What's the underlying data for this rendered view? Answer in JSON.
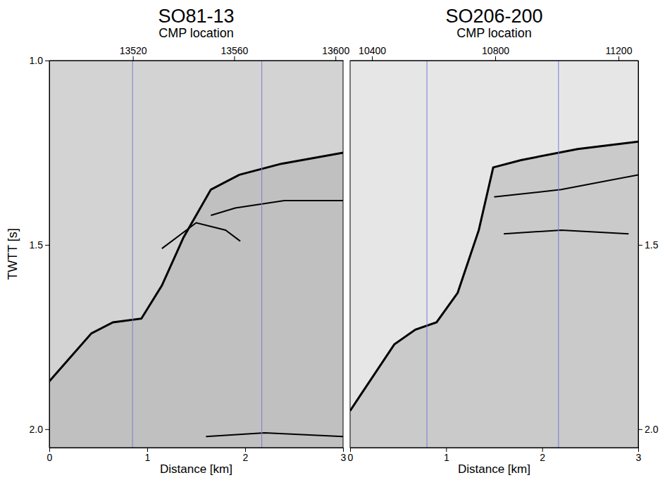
{
  "chart_data": [
    {
      "type": "line",
      "title": "SO81-13",
      "x2_label": "CMP location",
      "x_label": "Distance [km]",
      "y_label": "TWTT [s]",
      "color": "#d3d3d3",
      "xlim": [
        0,
        3
      ],
      "xticks": [
        0,
        1,
        2,
        3
      ],
      "x2lim": [
        13487,
        13603
      ],
      "x2ticks": [
        13520,
        13560,
        13600
      ],
      "ylim": [
        1.0,
        2.05
      ],
      "yticks": [
        {
          "value": 1.0,
          "label": "1.0"
        },
        {
          "value": 1.5,
          "label": "1.5"
        },
        {
          "value": 2.0,
          "label": "2.0"
        }
      ],
      "vlines": {
        "x": [
          0.85,
          2.17
        ],
        "color": "#7b7bd6"
      },
      "series": [
        {
          "type": "area",
          "color": "#000000",
          "x": [
            0,
            0.43,
            0.65,
            0.94,
            1.15,
            1.37,
            1.65,
            1.94,
            2.37,
            3.0
          ],
          "values": [
            1.87,
            1.74,
            1.71,
            1.7,
            1.61,
            1.48,
            1.35,
            1.31,
            1.28,
            1.25
          ]
        },
        {
          "type": "line",
          "color": "#000000",
          "x": [
            1.65,
            1.9,
            2.4,
            3.0
          ],
          "values": [
            1.42,
            1.4,
            1.38,
            1.38
          ]
        },
        {
          "type": "line",
          "color": "#000000",
          "x": [
            1.15,
            1.5,
            1.8,
            1.95
          ],
          "values": [
            1.51,
            1.44,
            1.46,
            1.49
          ]
        },
        {
          "type": "line",
          "color": "#000000",
          "x": [
            1.6,
            2.2,
            3.0
          ],
          "values": [
            2.02,
            2.01,
            2.02
          ]
        }
      ]
    },
    {
      "type": "line",
      "title": "SO206-200",
      "x2_label": "CMP location",
      "x_label": "Distance [km]",
      "color": "#e6e6e6",
      "xlim": [
        0,
        3
      ],
      "xticks": [
        0,
        1,
        2,
        3
      ],
      "x2lim": [
        10329,
        11264
      ],
      "x2ticks": [
        10400,
        10800,
        11200
      ],
      "y2lim": [
        1.0,
        2.05
      ],
      "y2ticks": [
        {
          "value": 1.5,
          "label": "1.5"
        },
        {
          "value": 2.0,
          "label": "2.0"
        }
      ],
      "vlines": {
        "x": [
          0.8,
          2.17
        ],
        "color": "#7b7bd6"
      },
      "series": [
        {
          "type": "area",
          "axis": "y2",
          "color": "#000000",
          "x": [
            0,
            0.46,
            0.68,
            0.9,
            1.12,
            1.34,
            1.49,
            1.78,
            2.37,
            3.0
          ],
          "values": [
            1.95,
            1.77,
            1.73,
            1.71,
            1.63,
            1.46,
            1.29,
            1.27,
            1.24,
            1.22
          ]
        },
        {
          "type": "line",
          "axis": "y2",
          "color": "#000000",
          "x": [
            1.5,
            2.2,
            3.0
          ],
          "values": [
            1.37,
            1.35,
            1.31
          ]
        },
        {
          "type": "line",
          "axis": "y2",
          "color": "#000000",
          "x": [
            1.6,
            2.2,
            2.9
          ],
          "values": [
            1.47,
            1.46,
            1.47
          ]
        }
      ]
    }
  ]
}
